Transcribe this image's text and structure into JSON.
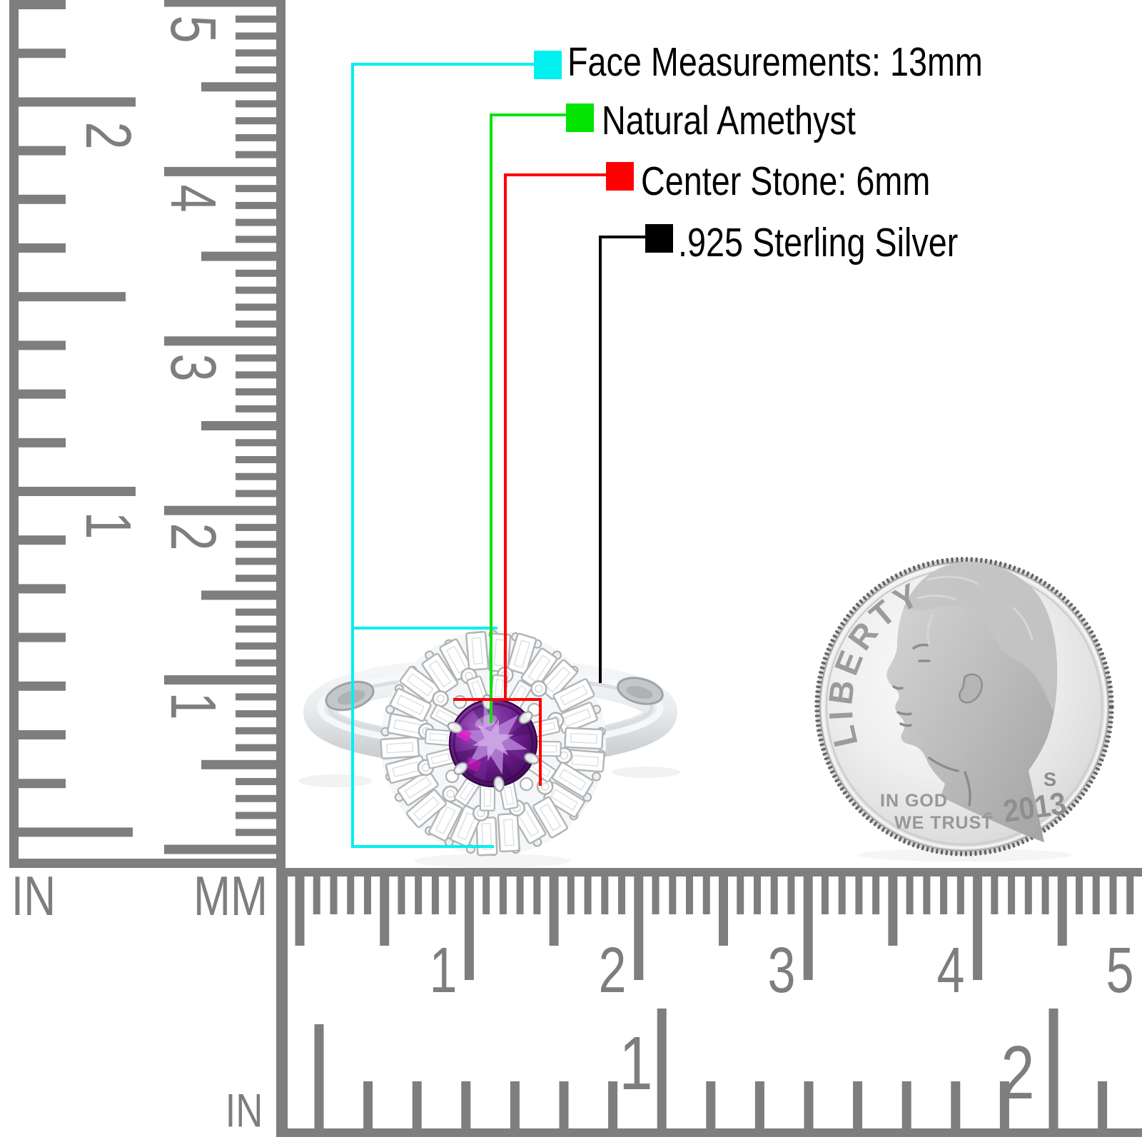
{
  "page": {
    "background": "#FFFFFF"
  },
  "annotations": {
    "items": [
      {
        "label": "Face Measurements: 13mm",
        "color": "#00F0F0"
      },
      {
        "label": "Natural Amethyst",
        "color": "#00E400"
      },
      {
        "label": "Center Stone: 6mm",
        "color": "#FF0000"
      },
      {
        "label": ".925 Sterling Silver",
        "color": "#000000"
      }
    ]
  },
  "rulers": {
    "color": "#7E7E7E",
    "left_inch": {
      "unit": "IN",
      "numbers": [
        "2",
        "1"
      ]
    },
    "left_mm": {
      "unit": "MM",
      "numbers": [
        "5",
        "4",
        "3",
        "2",
        "1"
      ]
    },
    "bottom_mm": {
      "numbers": [
        "1",
        "2",
        "3",
        "4",
        "5"
      ]
    },
    "bottom_inch": {
      "unit": "IN",
      "numbers": [
        "1",
        "2"
      ]
    }
  },
  "coin": {
    "legend": "LIBERTY",
    "motto_line1": "IN GOD",
    "motto_line2": "WE TRUST",
    "date": "2013",
    "mint_mark": "S"
  },
  "ring": {
    "stone_color": "#6B1E8C",
    "metal_color": "#E9ECEE"
  }
}
